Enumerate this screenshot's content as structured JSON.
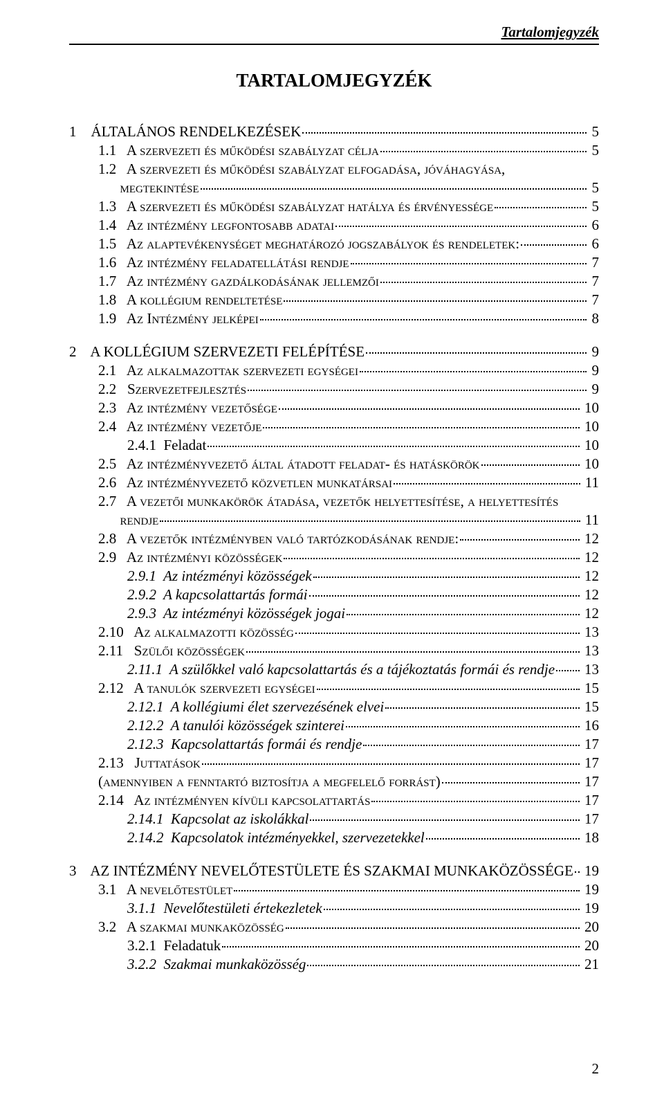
{
  "running_head": "Tartalomjegyzék",
  "title": "TARTALOMJEGYZÉK",
  "footer_page": "2",
  "toc": [
    {
      "lvl": 0,
      "num": "1",
      "text": "ÁLTALÁNOS RENDELKEZÉSEK",
      "page": "5",
      "sc": false,
      "gap_before": false
    },
    {
      "lvl": 1,
      "num": "1.1",
      "text": "A szervezeti és működési szabályzat célja",
      "page": "5",
      "sc": true
    },
    {
      "lvl": 1,
      "num": "1.2",
      "text": "A szervezeti és működési szabályzat elfogadása, jóváhagyása, megtekintése",
      "page": "5",
      "sc": true,
      "wrap": [
        "A szervezeti és működési szabályzat elfogadása, jóváhagyása,",
        "megtekintése"
      ]
    },
    {
      "lvl": 1,
      "num": "1.3",
      "text": "A szervezeti és működési szabályzat hatálya és érvényessége",
      "page": "5",
      "sc": true
    },
    {
      "lvl": 1,
      "num": "1.4",
      "text": "Az intézmény legfontosabb adatai",
      "page": "6",
      "sc": true
    },
    {
      "lvl": 1,
      "num": "1.5",
      "text": "Az alaptevékenységet meghatározó jogszabályok és rendeletek:",
      "page": "6",
      "sc": true
    },
    {
      "lvl": 1,
      "num": "1.6",
      "text": "Az intézmény feladatellátási rendje",
      "page": "7",
      "sc": true
    },
    {
      "lvl": 1,
      "num": "1.7",
      "text": "Az intézmény gazdálkodásának jellemzői",
      "page": "7",
      "sc": true
    },
    {
      "lvl": 1,
      "num": "1.8",
      "text": "A kollégium rendeltetése",
      "page": "7",
      "sc": true
    },
    {
      "lvl": 1,
      "num": "1.9",
      "text": "Az Intézmény jelképei",
      "page": "8",
      "sc": true
    },
    {
      "lvl": 0,
      "num": "2",
      "text": "A KOLLÉGIUM SZERVEZETI FELÉPÍTÉSE",
      "page": "9",
      "gap_before": true
    },
    {
      "lvl": 1,
      "num": "2.1",
      "text": "Az alkalmazottak szervezeti egységei",
      "page": "9",
      "sc": true
    },
    {
      "lvl": 1,
      "num": "2.2",
      "text": "Szervezetfejlesztés",
      "page": "9",
      "sc": true
    },
    {
      "lvl": 1,
      "num": "2.3",
      "text": "Az intézmény vezetősége",
      "page": "10",
      "sc": true
    },
    {
      "lvl": 1,
      "num": "2.4",
      "text": "Az intézmény vezetője",
      "page": "10",
      "sc": true
    },
    {
      "lvl": 2,
      "num": "2.4.1",
      "text": "Feladat",
      "page": "10"
    },
    {
      "lvl": 1,
      "num": "2.5",
      "text": "Az intézményvezető által átadott feladat- és hatáskörök",
      "page": "10",
      "sc": true
    },
    {
      "lvl": 1,
      "num": "2.6",
      "text": "Az intézményvezető közvetlen munkatársai",
      "page": "11",
      "sc": true
    },
    {
      "lvl": 1,
      "num": "2.7",
      "text": "A vezetői munkakörök átadása, vezetők helyettesítése, a helyettesítés rendje",
      "page": "11",
      "sc": true,
      "wrap": [
        "A vezetői munkakörök átadása, vezetők helyettesítése, a helyettesítés",
        "rendje"
      ]
    },
    {
      "lvl": 1,
      "num": "2.8",
      "text": "A vezetők intézményben való tartózkodásának rendje:",
      "page": "12",
      "sc": true
    },
    {
      "lvl": 1,
      "num": "2.9",
      "text": "Az intézményi közösségek",
      "page": "12",
      "sc": true
    },
    {
      "lvl": 2,
      "num": "2.9.1",
      "text": "Az intézményi közösségek",
      "page": "12",
      "italic": true
    },
    {
      "lvl": 2,
      "num": "2.9.2",
      "text": "A kapcsolattartás formái",
      "page": "12",
      "italic": true
    },
    {
      "lvl": 2,
      "num": "2.9.3",
      "text": "Az intézményi közösségek jogai",
      "page": "12",
      "italic": true
    },
    {
      "lvl": 1,
      "num": "2.10",
      "text": "Az alkalmazotti közösség",
      "page": "13",
      "sc": true
    },
    {
      "lvl": 1,
      "num": "2.11",
      "text": "Szülői közösségek",
      "page": "13",
      "sc": true
    },
    {
      "lvl": 2,
      "num": "2.11.1",
      "text": "A szülőkkel való kapcsolattartás és a tájékoztatás formái és rendje",
      "page": "13",
      "italic": true
    },
    {
      "lvl": 1,
      "num": "2.12",
      "text": "A tanulók szervezeti egységei",
      "page": "15",
      "sc": true
    },
    {
      "lvl": 2,
      "num": "2.12.1",
      "text": "A kollégiumi élet szervezésének elvei",
      "page": "15",
      "italic": true
    },
    {
      "lvl": 2,
      "num": "2.12.2",
      "text": "A tanulói közösségek szinterei",
      "page": "16",
      "italic": true
    },
    {
      "lvl": 2,
      "num": "2.12.3",
      "text": "Kapcsolattartás formái és rendje",
      "page": "17",
      "italic": true
    },
    {
      "lvl": 1,
      "num": "2.13",
      "text": "Juttatások",
      "page": "17",
      "sc": true
    },
    {
      "lvl": 1,
      "num": "",
      "text": "(amennyiben a fenntartó biztosítja a megfelelő forrást)",
      "page": "17",
      "sc": true,
      "noindent": true
    },
    {
      "lvl": 1,
      "num": "2.14",
      "text": "Az intézményen kívüli kapcsolattartás",
      "page": "17",
      "sc": true
    },
    {
      "lvl": 2,
      "num": "2.14.1",
      "text": "Kapcsolat az iskolákkal",
      "page": "17",
      "italic": true
    },
    {
      "lvl": 2,
      "num": "2.14.2",
      "text": "Kapcsolatok intézményekkel, szervezetekkel",
      "page": "18",
      "italic": true
    },
    {
      "lvl": 0,
      "num": "3",
      "text": "AZ INTÉZMÉNY NEVELŐTESTÜLETE ÉS SZAKMAI MUNKAKÖZÖSSÉGE",
      "page": "19",
      "gap_before": true
    },
    {
      "lvl": 1,
      "num": "3.1",
      "text": "A nevelőtestület",
      "page": "19",
      "sc": true
    },
    {
      "lvl": 2,
      "num": "3.1.1",
      "text": "Nevelőtestületi értekezletek",
      "page": "19",
      "italic": true
    },
    {
      "lvl": 1,
      "num": "3.2",
      "text": "A szakmai munkaközösség",
      "page": "20",
      "sc": true
    },
    {
      "lvl": 2,
      "num": "3.2.1",
      "text": "Feladatuk",
      "page": "20"
    },
    {
      "lvl": 2,
      "num": "3.2.2",
      "text": "Szakmai munkaközösség",
      "page": "21",
      "italic": true
    }
  ]
}
